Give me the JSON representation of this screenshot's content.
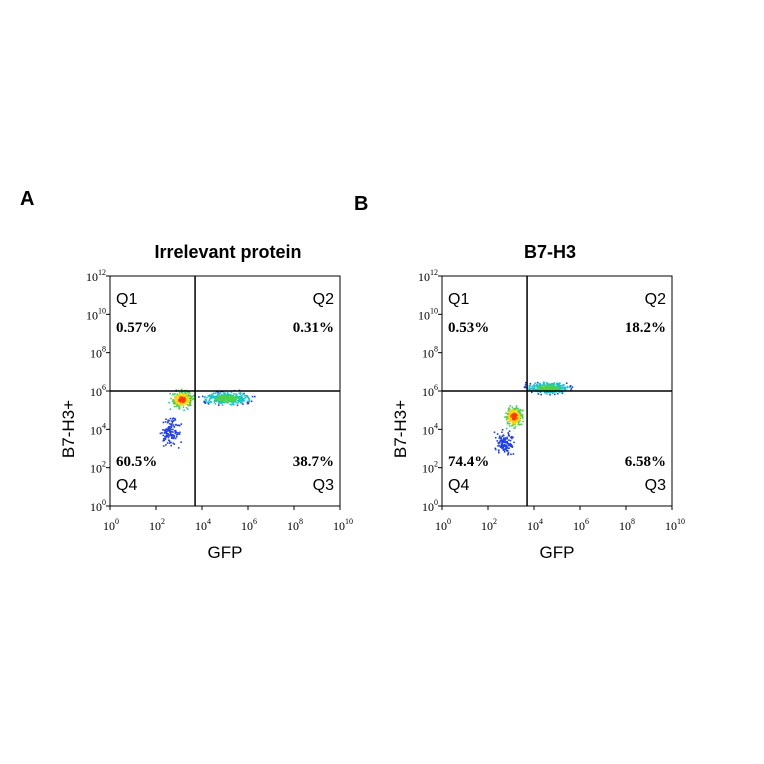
{
  "chart_data": [
    {
      "type": "scatter",
      "panel": "A",
      "title": "Irrelevant protein",
      "xlabel": "GFP",
      "ylabel": "B7-H3+",
      "x_scale": "log",
      "y_scale": "log",
      "xlim": [
        1,
        10000000000
      ],
      "ylim": [
        1,
        1000000000000
      ],
      "x_ticks": [
        {
          "base": "10",
          "exp": "0"
        },
        {
          "base": "10",
          "exp": "2"
        },
        {
          "base": "10",
          "exp": "4"
        },
        {
          "base": "10",
          "exp": "6"
        },
        {
          "base": "10",
          "exp": "8"
        },
        {
          "base": "10",
          "exp": "10"
        }
      ],
      "y_ticks": [
        {
          "base": "10",
          "exp": "0"
        },
        {
          "base": "10",
          "exp": "2"
        },
        {
          "base": "10",
          "exp": "4"
        },
        {
          "base": "10",
          "exp": "6"
        },
        {
          "base": "10",
          "exp": "8"
        },
        {
          "base": "10",
          "exp": "10"
        },
        {
          "base": "10",
          "exp": "12"
        }
      ],
      "gate": {
        "x": 5000,
        "y": 1000000
      },
      "quadrants": [
        {
          "name": "Q1",
          "percent": "0.57%"
        },
        {
          "name": "Q2",
          "percent": "0.31%"
        },
        {
          "name": "Q3",
          "percent": "38.7%"
        },
        {
          "name": "Q4",
          "percent": "60.5%"
        }
      ],
      "populations": [
        {
          "log_x_range": [
            2.5,
            3.7
          ],
          "log_y_range": [
            5.0,
            6.2
          ],
          "density": "high"
        },
        {
          "log_x_range": [
            3.7,
            6.4
          ],
          "log_y_range": [
            5.2,
            6.1
          ],
          "density": "medium"
        },
        {
          "log_x_range": [
            2.0,
            3.2
          ],
          "log_y_range": [
            2.8,
            5.0
          ],
          "density": "low"
        }
      ]
    },
    {
      "type": "scatter",
      "panel": "B",
      "title": "B7-H3",
      "xlabel": "GFP",
      "ylabel": "B7-H3+",
      "x_scale": "log",
      "y_scale": "log",
      "xlim": [
        1,
        10000000000
      ],
      "ylim": [
        1,
        1000000000000
      ],
      "x_ticks": [
        {
          "base": "10",
          "exp": "0"
        },
        {
          "base": "10",
          "exp": "2"
        },
        {
          "base": "10",
          "exp": "4"
        },
        {
          "base": "10",
          "exp": "6"
        },
        {
          "base": "10",
          "exp": "8"
        },
        {
          "base": "10",
          "exp": "10"
        }
      ],
      "y_ticks": [
        {
          "base": "10",
          "exp": "0"
        },
        {
          "base": "10",
          "exp": "2"
        },
        {
          "base": "10",
          "exp": "4"
        },
        {
          "base": "10",
          "exp": "6"
        },
        {
          "base": "10",
          "exp": "8"
        },
        {
          "base": "10",
          "exp": "10"
        },
        {
          "base": "10",
          "exp": "12"
        }
      ],
      "gate": {
        "x": 5000,
        "y": 1000000
      },
      "quadrants": [
        {
          "name": "Q1",
          "percent": "0.53%"
        },
        {
          "name": "Q2",
          "percent": "18.2%"
        },
        {
          "name": "Q3",
          "percent": "6.58%"
        },
        {
          "name": "Q4",
          "percent": "74.4%"
        }
      ],
      "populations": [
        {
          "log_x_range": [
            2.6,
            3.6
          ],
          "log_y_range": [
            4.0,
            5.4
          ],
          "density": "high"
        },
        {
          "log_x_range": [
            3.4,
            5.8
          ],
          "log_y_range": [
            5.8,
            6.6
          ],
          "density": "medium"
        },
        {
          "log_x_range": [
            2.2,
            3.2
          ],
          "log_y_range": [
            2.5,
            4.2
          ],
          "density": "low"
        }
      ]
    }
  ]
}
